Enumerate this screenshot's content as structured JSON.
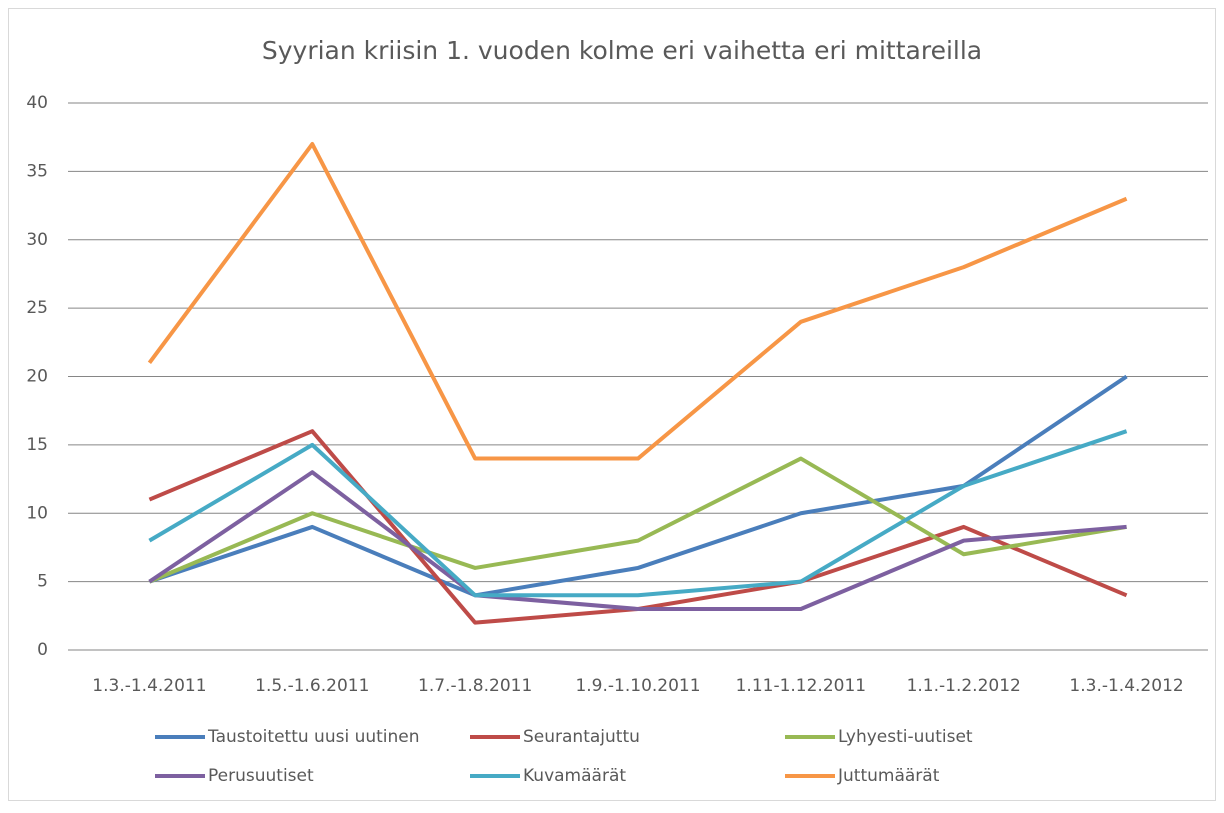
{
  "chart_data": {
    "type": "line",
    "title": "Syyrian kriisin 1. vuoden kolme eri vaihetta eri mittareilla",
    "categories": [
      "1.3.-1.4.2011",
      "1.5.-1.6.2011",
      "1.7.-1.8.2011",
      "1.9.-1.10.2011",
      "1.11-1.12.2011",
      "1.1.-1.2.2012",
      "1.3.-1.4.2012"
    ],
    "series": [
      {
        "name": "Taustoitettu uusi uutinen",
        "color": "#4a7ebb",
        "values": [
          5,
          9,
          4,
          6,
          10,
          12,
          20
        ]
      },
      {
        "name": "Seurantajuttu",
        "color": "#be4b48",
        "values": [
          11,
          16,
          2,
          3,
          5,
          9,
          4
        ]
      },
      {
        "name": "Lyhyesti-uutiset",
        "color": "#98b954",
        "values": [
          5,
          10,
          6,
          8,
          14,
          7,
          9
        ]
      },
      {
        "name": "Perusuutiset",
        "color": "#7d60a0",
        "values": [
          5,
          13,
          4,
          3,
          3,
          8,
          9
        ]
      },
      {
        "name": "Kuvamäärät",
        "color": "#46aac5",
        "values": [
          8,
          15,
          4,
          4,
          5,
          12,
          16
        ]
      },
      {
        "name": "Juttumäärät",
        "color": "#f79646",
        "values": [
          21,
          37,
          14,
          14,
          24,
          28,
          33
        ]
      }
    ],
    "ylim": [
      0,
      40
    ],
    "yticks": [
      0,
      5,
      10,
      15,
      20,
      25,
      30,
      35,
      40
    ],
    "grid": true,
    "legend": "bottom"
  }
}
